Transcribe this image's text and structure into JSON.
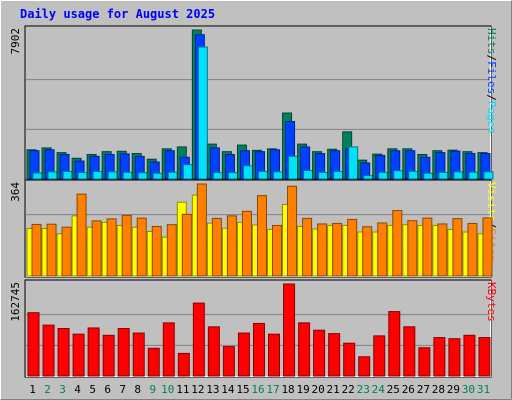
{
  "title": "Daily usage for August 2025",
  "colors": {
    "background": "#c0c0c0",
    "plot": "#c0c0c0",
    "grid": "#808080",
    "hits": "#00805c",
    "files": "#0040ff",
    "pages": "#00e0ff",
    "visits": "#ffff00",
    "sites": "#ff8000",
    "kbytes": "#ff0000",
    "title": "#0000ff",
    "weekday": "#000000",
    "weekend": "#00805c"
  },
  "chart_data": {
    "type": "bar",
    "title": "Daily usage for August 2025",
    "categories": [
      "1",
      "2",
      "3",
      "4",
      "5",
      "6",
      "7",
      "8",
      "9",
      "10",
      "11",
      "12",
      "13",
      "14",
      "15",
      "16",
      "17",
      "18",
      "19",
      "20",
      "21",
      "22",
      "23",
      "24",
      "25",
      "26",
      "27",
      "28",
      "29",
      "30",
      "31"
    ],
    "weekend_days": [
      "2",
      "3",
      "9",
      "10",
      "16",
      "17",
      "23",
      "24",
      "30",
      "31"
    ],
    "panels": [
      {
        "name": "hits-files-pages",
        "right_labels": [
          "Pages",
          "/",
          "Files",
          "/",
          "Hits"
        ],
        "right_label_colors": [
          "#00e0ff",
          "#000000",
          "#0040ff",
          "#000000",
          "#00805c"
        ],
        "max_label": "7902",
        "ymax": 7902,
        "series": [
          {
            "name": "Hits",
            "color": "#00805c",
            "values": [
              1550,
              1650,
              1400,
              1100,
              1300,
              1450,
              1470,
              1350,
              1050,
              1600,
              1700,
              7902,
              1850,
              1450,
              1800,
              1520,
              1600,
              3500,
              1850,
              1450,
              1580,
              2500,
              1000,
              1320,
              1600,
              1600,
              1300,
              1500,
              1530,
              1450,
              1400
            ]
          },
          {
            "name": "Files",
            "color": "#0040ff",
            "values": [
              1500,
              1550,
              1300,
              950,
              1200,
              1300,
              1330,
              1200,
              900,
              1500,
              1150,
              7650,
              1650,
              1300,
              1500,
              1450,
              1550,
              3050,
              1700,
              1350,
              1500,
              1600,
              850,
              1250,
              1500,
              1500,
              1150,
              1400,
              1480,
              1350,
              1350
            ]
          },
          {
            "name": "Pages",
            "color": "#00e0ff",
            "values": [
              320,
              380,
              400,
              340,
              400,
              380,
              350,
              330,
              300,
              360,
              760,
              7000,
              340,
              340,
              700,
              400,
              380,
              1200,
              450,
              350,
              400,
              1700,
              180,
              350,
              440,
              400,
              300,
              350,
              380,
              360,
              380
            ]
          }
        ]
      },
      {
        "name": "visits-sites",
        "right_labels": [
          "Sites",
          "/",
          "Visits"
        ],
        "right_label_colors": [
          "#ff8000",
          "#000000",
          "#ffff00"
        ],
        "max_label": "364",
        "ymax": 364,
        "series": [
          {
            "name": "Visits",
            "color": "#ffff00",
            "values": [
              188,
              188,
              167,
              238,
              193,
              212,
              200,
              193,
              176,
              154,
              292,
              320,
              209,
              189,
              212,
              202,
              184,
              283,
              196,
              186,
              200,
              200,
              174,
              174,
              200,
              203,
              200,
              200,
              184,
              174,
              167
            ]
          },
          {
            "name": "Sites",
            "color": "#ff8000",
            "values": [
              204,
              205,
              193,
              324,
              218,
              226,
              240,
              229,
              196,
              203,
              244,
              364,
              228,
              238,
              256,
              318,
              200,
              355,
              228,
              206,
              208,
              224,
              195,
              210,
              259,
              219,
              229,
              206,
              227,
              208,
              230
            ]
          }
        ]
      },
      {
        "name": "kbytes",
        "right_labels": [
          "KBytes"
        ],
        "right_label_colors": [
          "#ff0000"
        ],
        "max_label": "162745",
        "ymax": 162745,
        "series": [
          {
            "name": "KBytes",
            "color": "#ff0000",
            "values": [
              112000,
              90000,
              84000,
              74000,
              85000,
              72000,
              84000,
              76000,
              49000,
              94000,
              40000,
              129000,
              87000,
              52000,
              76000,
              93000,
              74000,
              162745,
              94000,
              81000,
              75000,
              58000,
              34000,
              71000,
              114000,
              87000,
              50000,
              68000,
              66000,
              72000,
              68000
            ]
          }
        ]
      }
    ]
  }
}
